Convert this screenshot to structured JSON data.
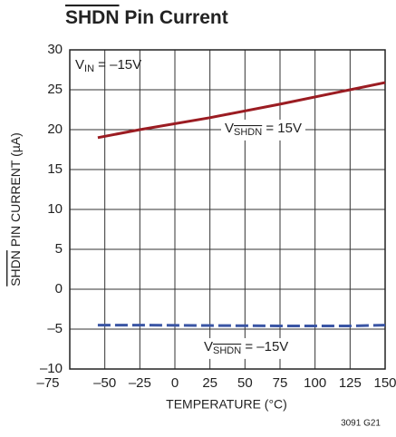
{
  "chart_data": {
    "type": "line",
    "title": [
      "SHDN",
      " Pin Current"
    ],
    "y_label": [
      "SHDN",
      " PIN CURRENT (µA)"
    ],
    "x_label": "TEMPERATURE (°C)",
    "footnote": "3091 G21",
    "annotations": [
      {
        "main": "V",
        "sub": "IN",
        "rest": " = –15V"
      },
      {
        "main": "V",
        "sub": "SHDN",
        "rest": " = 15V"
      },
      {
        "main": "V",
        "sub": "SHDN",
        "rest": " = –15V"
      }
    ],
    "x": [
      -55,
      -25,
      25,
      75,
      125,
      150
    ],
    "series": [
      {
        "color": "#9b1c22",
        "dashed": false,
        "values": [
          19.0,
          20.0,
          21.5,
          23.2,
          25.0,
          25.9
        ]
      },
      {
        "color": "#3a55a4",
        "dashed": true,
        "values": [
          -4.5,
          -4.5,
          -4.55,
          -4.6,
          -4.6,
          -4.5
        ]
      }
    ],
    "xlim": [
      -75,
      150
    ],
    "ylim": [
      -10,
      30
    ],
    "xticks": [
      {
        "value": -75,
        "label": "–75"
      },
      {
        "value": -50,
        "label": "–50"
      },
      {
        "value": -25,
        "label": "–25"
      },
      0,
      25,
      50,
      75,
      100,
      125,
      150
    ],
    "yticks": [
      {
        "value": -10,
        "label": "–10"
      },
      {
        "value": -5,
        "label": "–5"
      },
      0,
      5,
      10,
      15,
      20,
      25,
      30
    ],
    "grid": true
  }
}
